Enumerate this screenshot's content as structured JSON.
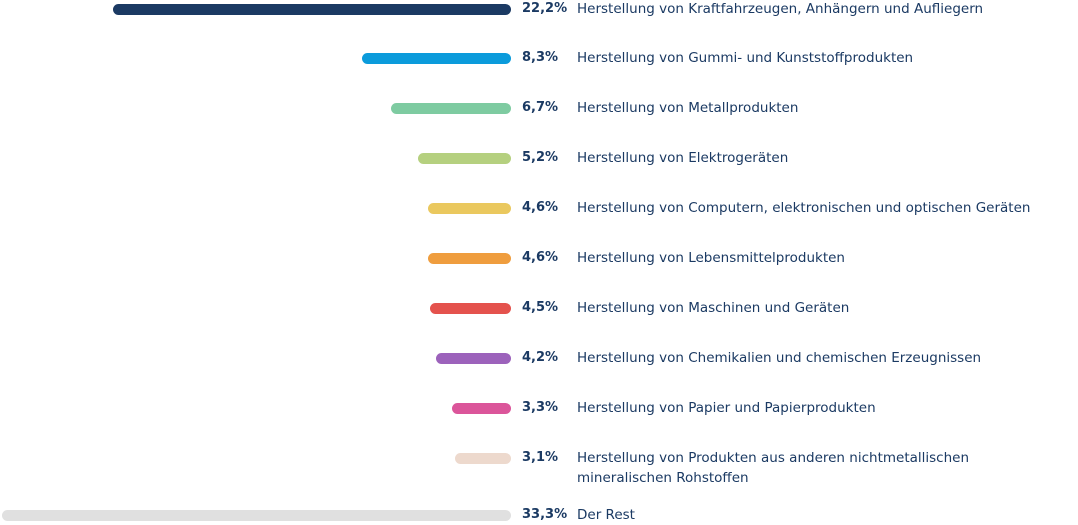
{
  "chart_data": {
    "type": "bar",
    "orientation": "horizontal",
    "title": "",
    "categories": [
      "Herstellung von Kraftfahrzeugen, Anhängern und Aufliegern",
      "Herstellung von Gummi- und Kunststoffprodukten",
      "Herstellung von Metallprodukten",
      "Herstellung von Elektrogeräten",
      "Herstellung von Computern, elektronischen und optischen Geräten",
      "Herstellung von Lebensmittelprodukten",
      "Herstellung von Maschinen und Geräten",
      "Herstellung von Chemikalien und chemischen Erzeugnissen",
      "Herstellung von Papier und Papierprodukten",
      "Herstellung von Produkten aus anderen nichtmetallischen mineralischen Rohstoffen",
      "Der Rest"
    ],
    "values": [
      22.2,
      8.3,
      6.7,
      5.2,
      4.6,
      4.6,
      4.5,
      4.2,
      3.3,
      3.1,
      33.3
    ],
    "value_labels": [
      "22,2%",
      "8,3%",
      "6,7%",
      "5,2%",
      "4,6%",
      "4,6%",
      "4,5%",
      "4,2%",
      "3,3%",
      "3,1%",
      "33,3%"
    ],
    "colors": [
      "#1b3a63",
      "#0b9bdb",
      "#7ecba1",
      "#b5d07f",
      "#eac85e",
      "#ef9d3e",
      "#e4524d",
      "#9c62bb",
      "#db559a",
      "#edd9cd",
      "#e0e0e0"
    ],
    "unit": "%",
    "grid": false,
    "legend": "none"
  }
}
